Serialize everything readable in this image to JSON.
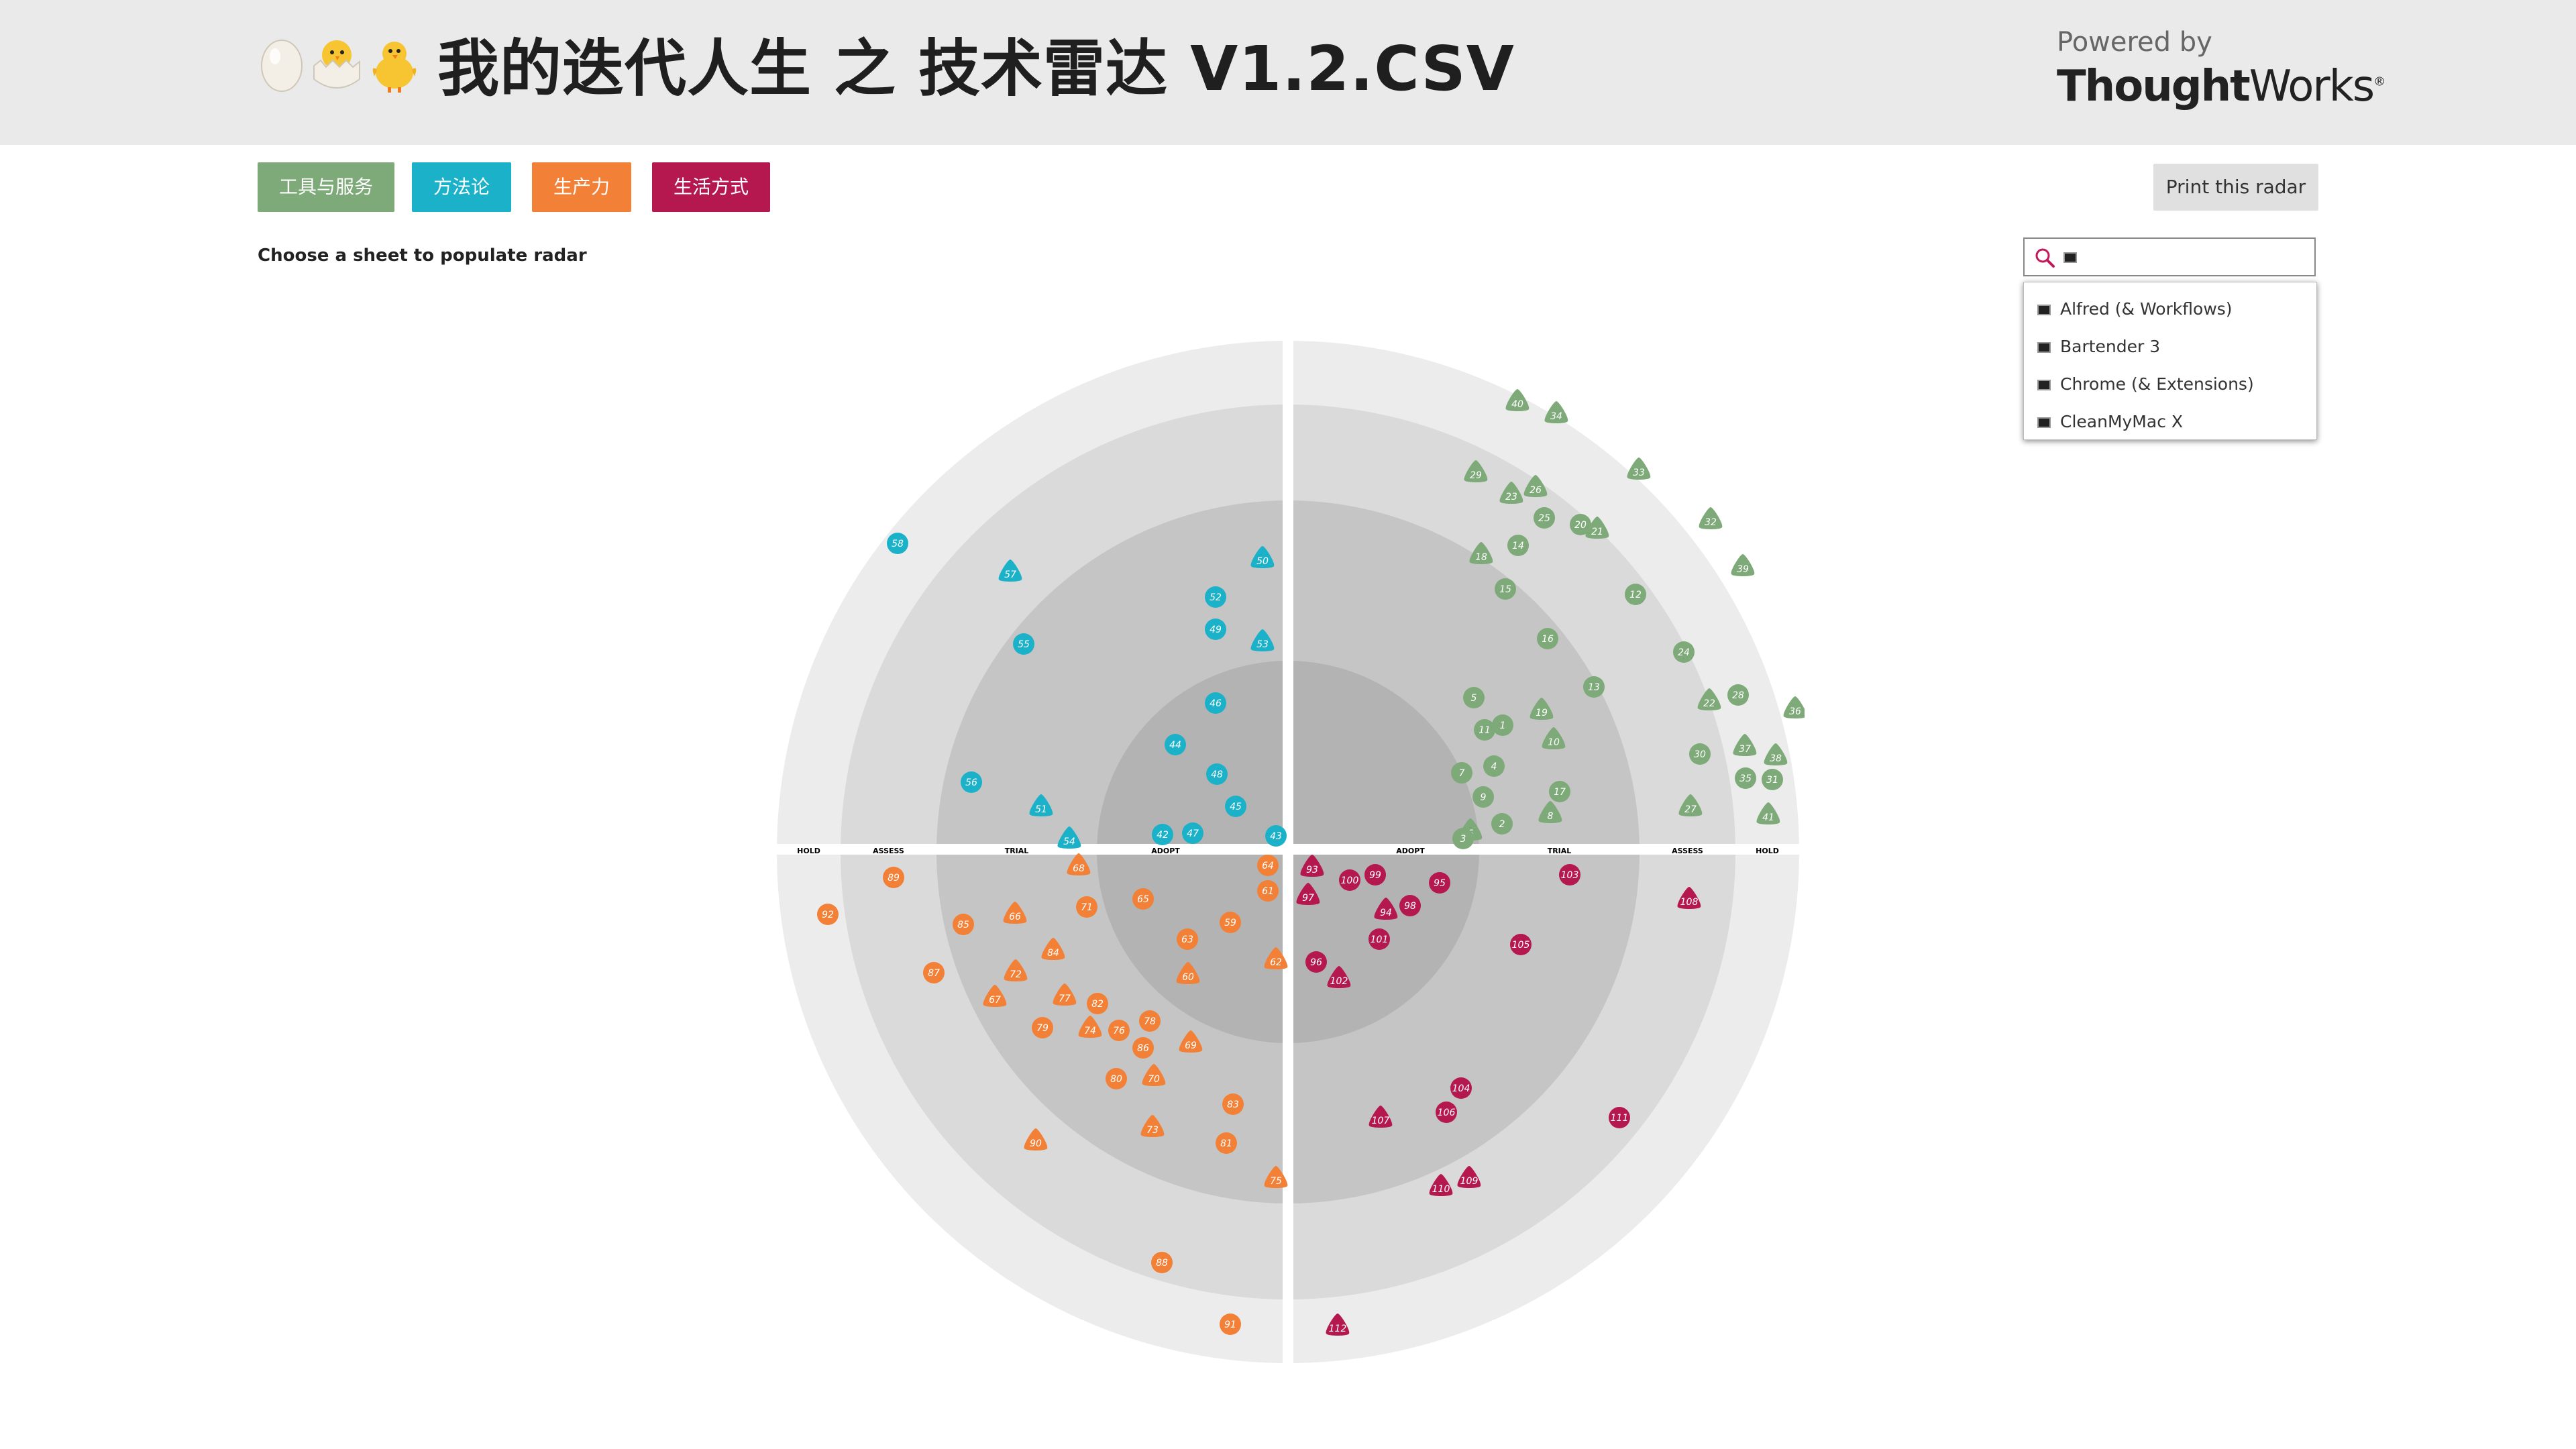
{
  "header": {
    "title": "我的迭代人生 之 技术雷达 V1.2.CSV",
    "emoji": [
      "egg-icon",
      "hatching-chick-icon",
      "chick-icon"
    ],
    "powered_by": "Powered by",
    "brand_bold": "Thought",
    "brand_light": "Works",
    "brand_mark": "®"
  },
  "quadrant_buttons": [
    {
      "label": "工具与服务",
      "color": "#7daa78"
    },
    {
      "label": "方法论",
      "color": "#1ab1c9"
    },
    {
      "label": "生产力",
      "color": "#f28036"
    },
    {
      "label": "生活方式",
      "color": "#b5184f"
    }
  ],
  "print_button": "Print this radar",
  "choose_text": "Choose a sheet to populate radar",
  "search": {
    "value": "",
    "suggestions": [
      "Alfred (& Workflows)",
      "Bartender 3",
      "Chrome (& Extensions)",
      "CleanMyMac X"
    ]
  },
  "rings": [
    "ADOPT",
    "TRIAL",
    "ASSESS",
    "HOLD"
  ],
  "colors": {
    "tools": "#7daa78",
    "methods": "#1ab1c9",
    "productivity": "#f28036",
    "lifestyle": "#b5184f"
  },
  "blips": [
    {
      "n": "40",
      "q": "tools",
      "s": "t"
    },
    {
      "n": "34",
      "q": "tools",
      "s": "t"
    },
    {
      "n": "29",
      "q": "tools",
      "s": "t"
    },
    {
      "n": "23",
      "q": "tools",
      "s": "t"
    },
    {
      "n": "26",
      "q": "tools",
      "s": "t"
    },
    {
      "n": "33",
      "q": "tools",
      "s": "t"
    },
    {
      "n": "25",
      "q": "tools",
      "s": "c"
    },
    {
      "n": "20",
      "q": "tools",
      "s": "c"
    },
    {
      "n": "21",
      "q": "tools",
      "s": "t"
    },
    {
      "n": "32",
      "q": "tools",
      "s": "t"
    },
    {
      "n": "18",
      "q": "tools",
      "s": "t"
    },
    {
      "n": "14",
      "q": "tools",
      "s": "c"
    },
    {
      "n": "39",
      "q": "tools",
      "s": "t"
    },
    {
      "n": "15",
      "q": "tools",
      "s": "c"
    },
    {
      "n": "12",
      "q": "tools",
      "s": "c"
    },
    {
      "n": "16",
      "q": "tools",
      "s": "c"
    },
    {
      "n": "24",
      "q": "tools",
      "s": "c"
    },
    {
      "n": "13",
      "q": "tools",
      "s": "c"
    },
    {
      "n": "22",
      "q": "tools",
      "s": "t"
    },
    {
      "n": "28",
      "q": "tools",
      "s": "c"
    },
    {
      "n": "36",
      "q": "tools",
      "s": "t"
    },
    {
      "n": "5",
      "q": "tools",
      "s": "c"
    },
    {
      "n": "19",
      "q": "tools",
      "s": "t"
    },
    {
      "n": "11",
      "q": "tools",
      "s": "c"
    },
    {
      "n": "1",
      "q": "tools",
      "s": "c"
    },
    {
      "n": "10",
      "q": "tools",
      "s": "t"
    },
    {
      "n": "37",
      "q": "tools",
      "s": "t"
    },
    {
      "n": "38",
      "q": "tools",
      "s": "t"
    },
    {
      "n": "30",
      "q": "tools",
      "s": "c"
    },
    {
      "n": "4",
      "q": "tools",
      "s": "c"
    },
    {
      "n": "7",
      "q": "tools",
      "s": "c"
    },
    {
      "n": "17",
      "q": "tools",
      "s": "c"
    },
    {
      "n": "35",
      "q": "tools",
      "s": "c"
    },
    {
      "n": "31",
      "q": "tools",
      "s": "c"
    },
    {
      "n": "9",
      "q": "tools",
      "s": "c"
    },
    {
      "n": "27",
      "q": "tools",
      "s": "t"
    },
    {
      "n": "2",
      "q": "tools",
      "s": "c"
    },
    {
      "n": "8",
      "q": "tools",
      "s": "t"
    },
    {
      "n": "41",
      "q": "tools",
      "s": "t"
    },
    {
      "n": "6",
      "q": "tools",
      "s": "t"
    },
    {
      "n": "3",
      "q": "tools",
      "s": "c"
    },
    {
      "n": "58",
      "q": "methods",
      "s": "c"
    },
    {
      "n": "57",
      "q": "methods",
      "s": "t"
    },
    {
      "n": "50",
      "q": "methods",
      "s": "t"
    },
    {
      "n": "52",
      "q": "methods",
      "s": "c"
    },
    {
      "n": "49",
      "q": "methods",
      "s": "c"
    },
    {
      "n": "55",
      "q": "methods",
      "s": "c"
    },
    {
      "n": "53",
      "q": "methods",
      "s": "t"
    },
    {
      "n": "46",
      "q": "methods",
      "s": "c"
    },
    {
      "n": "44",
      "q": "methods",
      "s": "c"
    },
    {
      "n": "48",
      "q": "methods",
      "s": "c"
    },
    {
      "n": "56",
      "q": "methods",
      "s": "c"
    },
    {
      "n": "51",
      "q": "methods",
      "s": "t"
    },
    {
      "n": "45",
      "q": "methods",
      "s": "c"
    },
    {
      "n": "54",
      "q": "methods",
      "s": "t"
    },
    {
      "n": "42",
      "q": "methods",
      "s": "c"
    },
    {
      "n": "47",
      "q": "methods",
      "s": "c"
    },
    {
      "n": "43",
      "q": "methods",
      "s": "c"
    },
    {
      "n": "89",
      "q": "productivity",
      "s": "c"
    },
    {
      "n": "68",
      "q": "productivity",
      "s": "t"
    },
    {
      "n": "64",
      "q": "productivity",
      "s": "c"
    },
    {
      "n": "61",
      "q": "productivity",
      "s": "c"
    },
    {
      "n": "92",
      "q": "productivity",
      "s": "c"
    },
    {
      "n": "65",
      "q": "productivity",
      "s": "c"
    },
    {
      "n": "71",
      "q": "productivity",
      "s": "c"
    },
    {
      "n": "66",
      "q": "productivity",
      "s": "t"
    },
    {
      "n": "85",
      "q": "productivity",
      "s": "c"
    },
    {
      "n": "59",
      "q": "productivity",
      "s": "c"
    },
    {
      "n": "63",
      "q": "productivity",
      "s": "c"
    },
    {
      "n": "84",
      "q": "productivity",
      "s": "t"
    },
    {
      "n": "62",
      "q": "productivity",
      "s": "t"
    },
    {
      "n": "87",
      "q": "productivity",
      "s": "c"
    },
    {
      "n": "72",
      "q": "productivity",
      "s": "t"
    },
    {
      "n": "60",
      "q": "productivity",
      "s": "t"
    },
    {
      "n": "67",
      "q": "productivity",
      "s": "t"
    },
    {
      "n": "77",
      "q": "productivity",
      "s": "t"
    },
    {
      "n": "82",
      "q": "productivity",
      "s": "c"
    },
    {
      "n": "78",
      "q": "productivity",
      "s": "c"
    },
    {
      "n": "79",
      "q": "productivity",
      "s": "c"
    },
    {
      "n": "74",
      "q": "productivity",
      "s": "t"
    },
    {
      "n": "76",
      "q": "productivity",
      "s": "c"
    },
    {
      "n": "69",
      "q": "productivity",
      "s": "t"
    },
    {
      "n": "86",
      "q": "productivity",
      "s": "c"
    },
    {
      "n": "80",
      "q": "productivity",
      "s": "c"
    },
    {
      "n": "70",
      "q": "productivity",
      "s": "t"
    },
    {
      "n": "83",
      "q": "productivity",
      "s": "c"
    },
    {
      "n": "73",
      "q": "productivity",
      "s": "t"
    },
    {
      "n": "90",
      "q": "productivity",
      "s": "t"
    },
    {
      "n": "81",
      "q": "productivity",
      "s": "c"
    },
    {
      "n": "75",
      "q": "productivity",
      "s": "t"
    },
    {
      "n": "88",
      "q": "productivity",
      "s": "c"
    },
    {
      "n": "91",
      "q": "productivity",
      "s": "c"
    },
    {
      "n": "93",
      "q": "lifestyle",
      "s": "t"
    },
    {
      "n": "99",
      "q": "lifestyle",
      "s": "c"
    },
    {
      "n": "100",
      "q": "lifestyle",
      "s": "c"
    },
    {
      "n": "95",
      "q": "lifestyle",
      "s": "c"
    },
    {
      "n": "103",
      "q": "lifestyle",
      "s": "c"
    },
    {
      "n": "97",
      "q": "lifestyle",
      "s": "t"
    },
    {
      "n": "94",
      "q": "lifestyle",
      "s": "t"
    },
    {
      "n": "98",
      "q": "lifestyle",
      "s": "c"
    },
    {
      "n": "108",
      "q": "lifestyle",
      "s": "t"
    },
    {
      "n": "101",
      "q": "lifestyle",
      "s": "c"
    },
    {
      "n": "105",
      "q": "lifestyle",
      "s": "c"
    },
    {
      "n": "96",
      "q": "lifestyle",
      "s": "c"
    },
    {
      "n": "102",
      "q": "lifestyle",
      "s": "t"
    },
    {
      "n": "104",
      "q": "lifestyle",
      "s": "c"
    },
    {
      "n": "107",
      "q": "lifestyle",
      "s": "t"
    },
    {
      "n": "106",
      "q": "lifestyle",
      "s": "c"
    },
    {
      "n": "111",
      "q": "lifestyle",
      "s": "c"
    },
    {
      "n": "110",
      "q": "lifestyle",
      "s": "t"
    },
    {
      "n": "109",
      "q": "lifestyle",
      "s": "t"
    },
    {
      "n": "112",
      "q": "lifestyle",
      "s": "t"
    }
  ]
}
